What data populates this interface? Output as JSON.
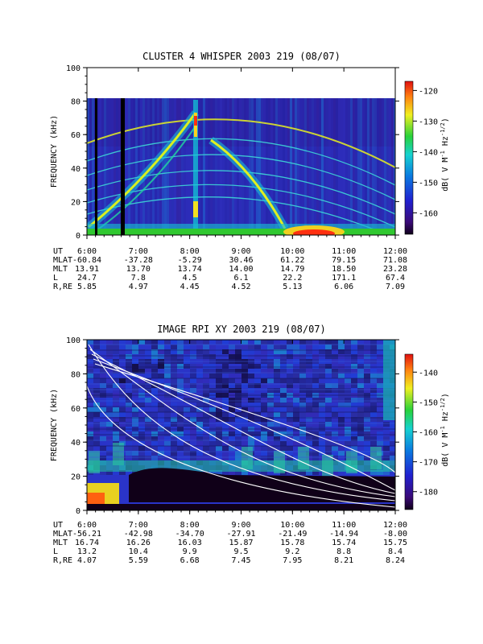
{
  "chart_data": [
    {
      "type": "heatmap",
      "title": "CLUSTER 4 WHISPER 2003 219 (08/07)",
      "ylabel": "FREQUENCY (kHz)",
      "ylim": [
        0,
        100
      ],
      "yticks": [
        0,
        20,
        40,
        60,
        80,
        100
      ],
      "xlim": [
        "6:00",
        "12:00"
      ],
      "data_top_khz": 80,
      "colorbar": {
        "label": "dB( V M-1 Hz-1/2)",
        "range": [
          -167,
          -117
        ],
        "ticks": [
          -120,
          -130,
          -140,
          -150,
          -160
        ]
      },
      "features": [
        {
          "name": "",
          "desc": "data gaps (black stripes)",
          "times_hr": [
            6.15,
            6.7
          ]
        },
        {
          "name": "",
          "desc": "rising emission band",
          "from": [
            6.1,
            4
          ],
          "to": [
            8.05,
            75
          ]
        },
        {
          "name": "",
          "desc": "falling emission band",
          "from": [
            8.4,
            58
          ],
          "to": [
            10.1,
            5
          ]
        },
        {
          "name": "",
          "desc": "plasma resonance harmonic arcs",
          "peak_time_hr": 9.5,
          "peak_khz": 64
        },
        {
          "name": "",
          "desc": "intense low-frequency noise",
          "time_hr": [
            9.6,
            10.7
          ],
          "khz": [
            0,
            6
          ]
        }
      ],
      "ephemeris": {
        "rows": [
          {
            "label": "UT",
            "values": [
              "6:00",
              "7:00",
              "8:00",
              "9:00",
              "10:00",
              "11:00",
              "12:00"
            ]
          },
          {
            "label": "MLAT",
            "values": [
              "-60.84",
              "-37.28",
              "-5.29",
              "30.46",
              "61.22",
              "79.15",
              "71.08"
            ]
          },
          {
            "label": "MLT",
            "values": [
              "13.91",
              "13.70",
              "13.74",
              "14.00",
              "14.79",
              "18.50",
              "23.28"
            ]
          },
          {
            "label": "L",
            "values": [
              "24.7",
              "7.8",
              "4.5",
              "6.1",
              "22.2",
              "171.1",
              "67.4"
            ]
          },
          {
            "label": "R,RE",
            "values": [
              "5.85",
              "4.97",
              "4.45",
              "4.52",
              "5.13",
              "6.06",
              "7.09"
            ]
          }
        ]
      }
    },
    {
      "type": "heatmap",
      "title": "IMAGE RPI XY 2003 219 (08/07)",
      "ylabel": "FREQUENCY (kHz)",
      "ylim": [
        0,
        100
      ],
      "yticks": [
        0,
        20,
        40,
        60,
        80,
        100
      ],
      "xlim": [
        "6:00",
        "12:00"
      ],
      "data_top_khz": 100,
      "colorbar": {
        "label": "dB( V M-1 Hz-1/2)",
        "range": [
          -186,
          -134
        ],
        "ticks": [
          -140,
          -150,
          -160,
          -170,
          -180
        ]
      },
      "features": [
        {
          "name": "",
          "desc": "white model curves (plasma frequency harmonics)",
          "count": 6
        },
        {
          "name": "",
          "desc": "dark low-frequency band",
          "time_hr": [
            7.0,
            12.0
          ],
          "khz": [
            2,
            22
          ]
        },
        {
          "name": "",
          "desc": "intense low-frequency emission",
          "time_hr": [
            6.0,
            6.3
          ],
          "khz": [
            0,
            15
          ]
        }
      ],
      "ephemeris": {
        "rows": [
          {
            "label": "UT",
            "values": [
              "6:00",
              "7:00",
              "8:00",
              "9:00",
              "10:00",
              "11:00",
              "12:00"
            ]
          },
          {
            "label": "MLAT",
            "values": [
              "-56.21",
              "-42.98",
              "-34.70",
              "-27.91",
              "-21.49",
              "-14.94",
              "-8.00"
            ]
          },
          {
            "label": "MLT",
            "values": [
              "16.74",
              "16.26",
              "16.03",
              "15.87",
              "15.78",
              "15.74",
              "15.75"
            ]
          },
          {
            "label": "L",
            "values": [
              "13.2",
              "10.4",
              "9.9",
              "9.5",
              "9.2",
              "8.8",
              "8.4"
            ]
          },
          {
            "label": "R,RE",
            "values": [
              "4.07",
              "5.59",
              "6.68",
              "7.45",
              "7.95",
              "8.21",
              "8.24"
            ]
          }
        ]
      }
    }
  ]
}
